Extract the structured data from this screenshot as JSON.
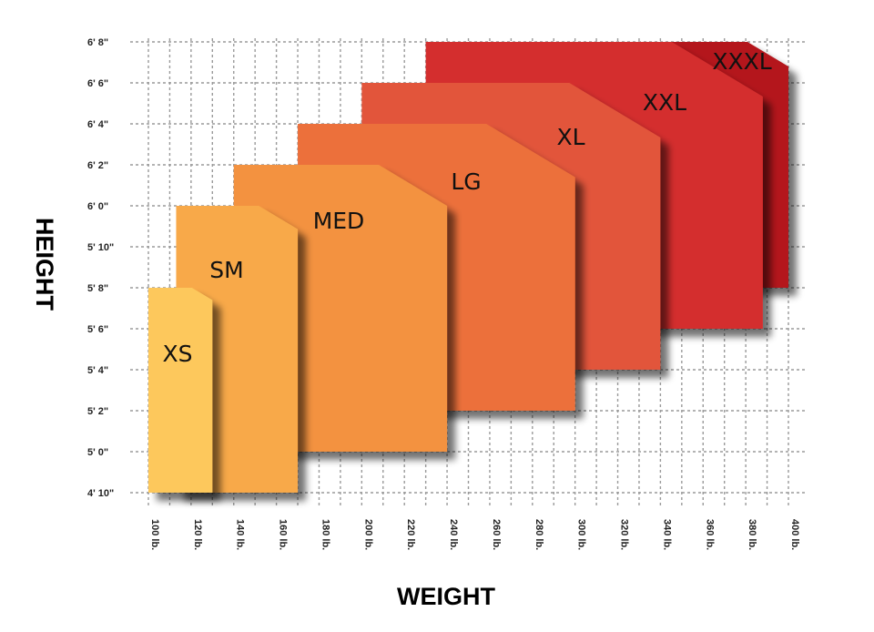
{
  "chart_data": {
    "type": "area",
    "xlabel": "WEIGHT",
    "ylabel": "HEIGHT",
    "x_ticks": [
      "100 lb.",
      "120 lb.",
      "140 lb.",
      "160 lb.",
      "180 lb.",
      "200 lb.",
      "220 lb.",
      "240 lb.",
      "260 lb.",
      "280 lb.",
      "300 lb.",
      "320 lb.",
      "340 lb.",
      "360 lb.",
      "380 lb.",
      "400 lb."
    ],
    "y_ticks": [
      "4' 10\"",
      "5' 0\"",
      "5' 2\"",
      "5' 4\"",
      "5' 6\"",
      "5' 8\"",
      "5' 10\"",
      "6' 0\"",
      "6' 2\"",
      "6' 4\"",
      "6' 6\"",
      "6' 8\""
    ],
    "xlim": [
      100,
      400
    ],
    "ylim_inches": [
      58,
      80
    ],
    "grid": true,
    "sizes": [
      {
        "label": "XS",
        "weight_min": 100,
        "weight_max": 130,
        "height_min_in": 58,
        "height_max_in": 68,
        "color": "#fdc85c"
      },
      {
        "label": "SM",
        "weight_min": 113,
        "weight_max": 170,
        "height_min_in": 58,
        "height_max_in": 72,
        "color": "#f8a94a"
      },
      {
        "label": "MED",
        "weight_min": 140,
        "weight_max": 240,
        "height_min_in": 60,
        "height_max_in": 74,
        "color": "#f3923f"
      },
      {
        "label": "LG",
        "weight_min": 170,
        "weight_max": 300,
        "height_min_in": 62,
        "height_max_in": 76,
        "color": "#ec6f3a"
      },
      {
        "label": "XL",
        "weight_min": 200,
        "weight_max": 340,
        "height_min_in": 64,
        "height_max_in": 78,
        "color": "#e2553a"
      },
      {
        "label": "XXL",
        "weight_min": 230,
        "weight_max": 388,
        "height_min_in": 66,
        "height_max_in": 80,
        "color": "#d42f2f"
      },
      {
        "label": "XXXL",
        "weight_min": 340,
        "weight_max": 400,
        "height_min_in": 68,
        "height_max_in": 80,
        "color": "#b4141c"
      }
    ]
  }
}
